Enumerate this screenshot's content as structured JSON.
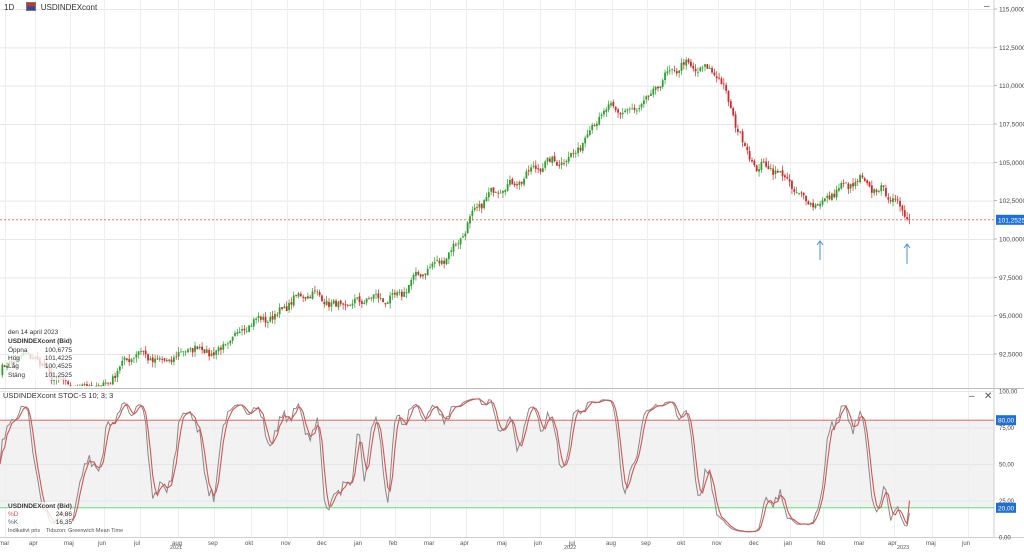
{
  "header": {
    "timeframe": "1D",
    "symbol": "USDINDEXcont"
  },
  "price_panel": {
    "y_ticks": [
      "115,0000",
      "112,5000",
      "110,0000",
      "107,5000",
      "105,0000",
      "102,5000",
      "100,0000",
      "97,5000",
      "95,0000",
      "92,5000"
    ],
    "last_price_label": "101,2525",
    "info": {
      "date": "den 14 april 2023",
      "symbol": "USDINDEXcont (Bid)",
      "rows": [
        {
          "label": "Öppna",
          "value": "100,6775"
        },
        {
          "label": "Hög",
          "value": "101,4225"
        },
        {
          "label": "Låg",
          "value": "100,4525"
        },
        {
          "label": "Stäng",
          "value": "101,2525"
        }
      ]
    }
  },
  "stoch_panel": {
    "title": "USDINDEXcont  STOC-S 10; 3; 3",
    "y_ticks": [
      "100,00",
      "75,00",
      "50,00",
      "25,00",
      "0,00"
    ],
    "level_labels": [
      "80,00",
      "20,00"
    ],
    "info": {
      "symbol": "USDINDEXcont (Bid)",
      "rows": [
        {
          "label": "%D",
          "value": "24,86"
        },
        {
          "label": "%K",
          "value": "16,35"
        }
      ]
    },
    "footer": {
      "left": "Indikativt pris",
      "right": "Tidszon: Greenwich Mean Time"
    },
    "minimize_glyph": "–",
    "close_glyph": "✕"
  },
  "price_panel_close_glyph": "–",
  "x_axis": {
    "months": [
      "mar",
      "apr",
      "maj",
      "jun",
      "jul",
      "aug",
      "sep",
      "okt",
      "nov",
      "dec",
      "jan",
      "feb",
      "mar",
      "apr",
      "maj",
      "jun",
      "jul",
      "aug",
      "sep",
      "okt",
      "nov",
      "dec",
      "jan",
      "feb",
      "mar",
      "apr",
      "maj",
      "jun"
    ],
    "years": [
      "2021",
      "2022",
      "2023"
    ]
  },
  "colors": {
    "up": "#2ca02c",
    "down": "#d62728",
    "pct_d": "#d9534f",
    "pct_k": "#888888",
    "band": "#f2f2f2",
    "upper_level": "#d9534f",
    "lower_level": "#4cd964",
    "last_price": "#e0674a",
    "arrow": "#4a90d9",
    "price_tag": "#1e6fd9"
  },
  "chart_data": [
    {
      "type": "line",
      "name": "price",
      "note_series": "daily candlestick",
      "x": [
        "2021-03-01",
        "2021-04-01",
        "2021-05-01",
        "2021-06-01",
        "2021-07-01",
        "2021-08-01",
        "2021-09-01",
        "2021-10-01",
        "2021-11-01",
        "2021-12-01",
        "2022-01-01",
        "2022-02-01",
        "2022-03-01",
        "2022-04-01",
        "2022-05-01",
        "2022-06-01",
        "2022-07-01",
        "2022-08-01",
        "2022-09-01",
        "2022-10-01",
        "2022-11-01",
        "2022-12-01",
        "2023-01-01",
        "2023-02-01",
        "2023-03-01",
        "2023-04-14"
      ],
      "y": [
        91.4,
        92.6,
        89.9,
        90.8,
        92.4,
        92.3,
        92.9,
        94.2,
        95.9,
        96.2,
        95.6,
        96.5,
        97.8,
        100.8,
        103.7,
        104.4,
        105.9,
        108.5,
        108.8,
        111.8,
        110.4,
        104.9,
        103.6,
        102.1,
        104.2,
        101.2525
      ],
      "ylim": [
        90.5,
        116.0
      ],
      "y_ticks": [
        92.5,
        95.0,
        97.5,
        100.0,
        102.5,
        105.0,
        107.5,
        110.0,
        112.5,
        115.0
      ]
    },
    {
      "type": "line",
      "series": [
        {
          "name": "%D"
        },
        {
          "name": "%K"
        }
      ],
      "ylim": [
        0,
        100
      ],
      "levels": [
        80,
        20
      ],
      "last": {
        "%D": 24.86,
        "%K": 16.35
      }
    }
  ]
}
